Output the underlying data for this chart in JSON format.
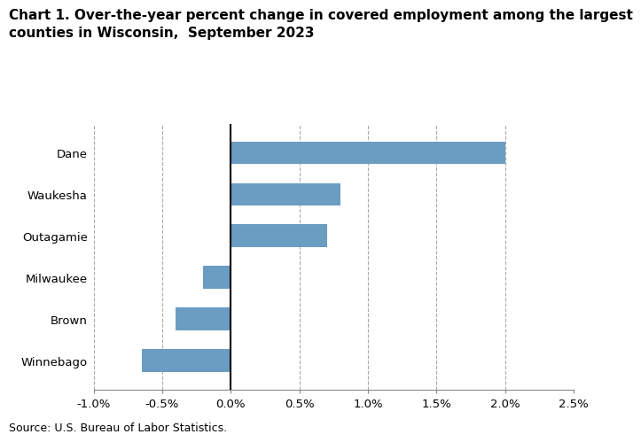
{
  "title_line1": "Chart 1. Over-the-year percent change in covered employment among the largest",
  "title_line2": "counties in Wisconsin,  September 2023",
  "categories": [
    "Dane",
    "Waukesha",
    "Outagamie",
    "Milwaukee",
    "Brown",
    "Winnebago"
  ],
  "values": [
    2.0,
    0.8,
    0.7,
    -0.2,
    -0.4,
    -0.65
  ],
  "bar_color": "#6b9dc2",
  "xlim": [
    -1.0,
    2.5
  ],
  "xticks": [
    -1.0,
    -0.5,
    0.0,
    0.5,
    1.0,
    1.5,
    2.0,
    2.5
  ],
  "xtick_labels": [
    "-1.0%",
    "-0.5%",
    "0.0%",
    "0.5%",
    "1.0%",
    "1.5%",
    "2.0%",
    "2.5%"
  ],
  "source": "Source: U.S. Bureau of Labor Statistics.",
  "background_color": "#ffffff",
  "grid_color": "#aaaaaa",
  "title_fontsize": 11,
  "tick_fontsize": 9.5,
  "source_fontsize": 9,
  "bar_height": 0.55
}
